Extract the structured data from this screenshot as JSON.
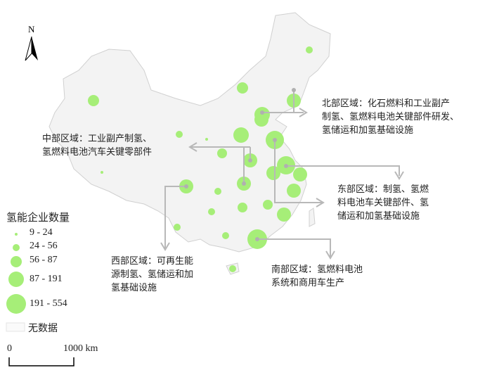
{
  "north_label": "N",
  "colors": {
    "circle": "#a6ee78",
    "land": "#f3f3f3",
    "border": "#cfcfcf",
    "leader": "#b8b8b8"
  },
  "regions": [
    {
      "lines": [
        "北部区域：化石燃料和工业副产",
        "制氢、氢燃料电池关键部件研发、",
        "氢储运和加氢基础设施"
      ]
    },
    {
      "lines": [
        "中部区域：工业副产制氢、",
        "氢燃料电池汽车关键零部件"
      ]
    },
    {
      "lines": [
        "东部区域：制氢、氢燃",
        "料电池车关键部件、氢",
        "储运和加氢基础设施"
      ]
    },
    {
      "lines": [
        "西部区域：可再生能",
        "源制氢、氢储运和加",
        "氢基础设施"
      ]
    },
    {
      "lines": [
        "南部区域：氢燃料电池",
        "系统和商用车生产"
      ]
    }
  ],
  "legend": {
    "title": "氢能企业数量",
    "classes": [
      "9 - 24",
      "24 - 56",
      "56 - 87",
      "87 - 191",
      "191 - 554"
    ],
    "no_data": "无数据"
  },
  "scale": {
    "zero": "0",
    "max": "1000 km"
  }
}
